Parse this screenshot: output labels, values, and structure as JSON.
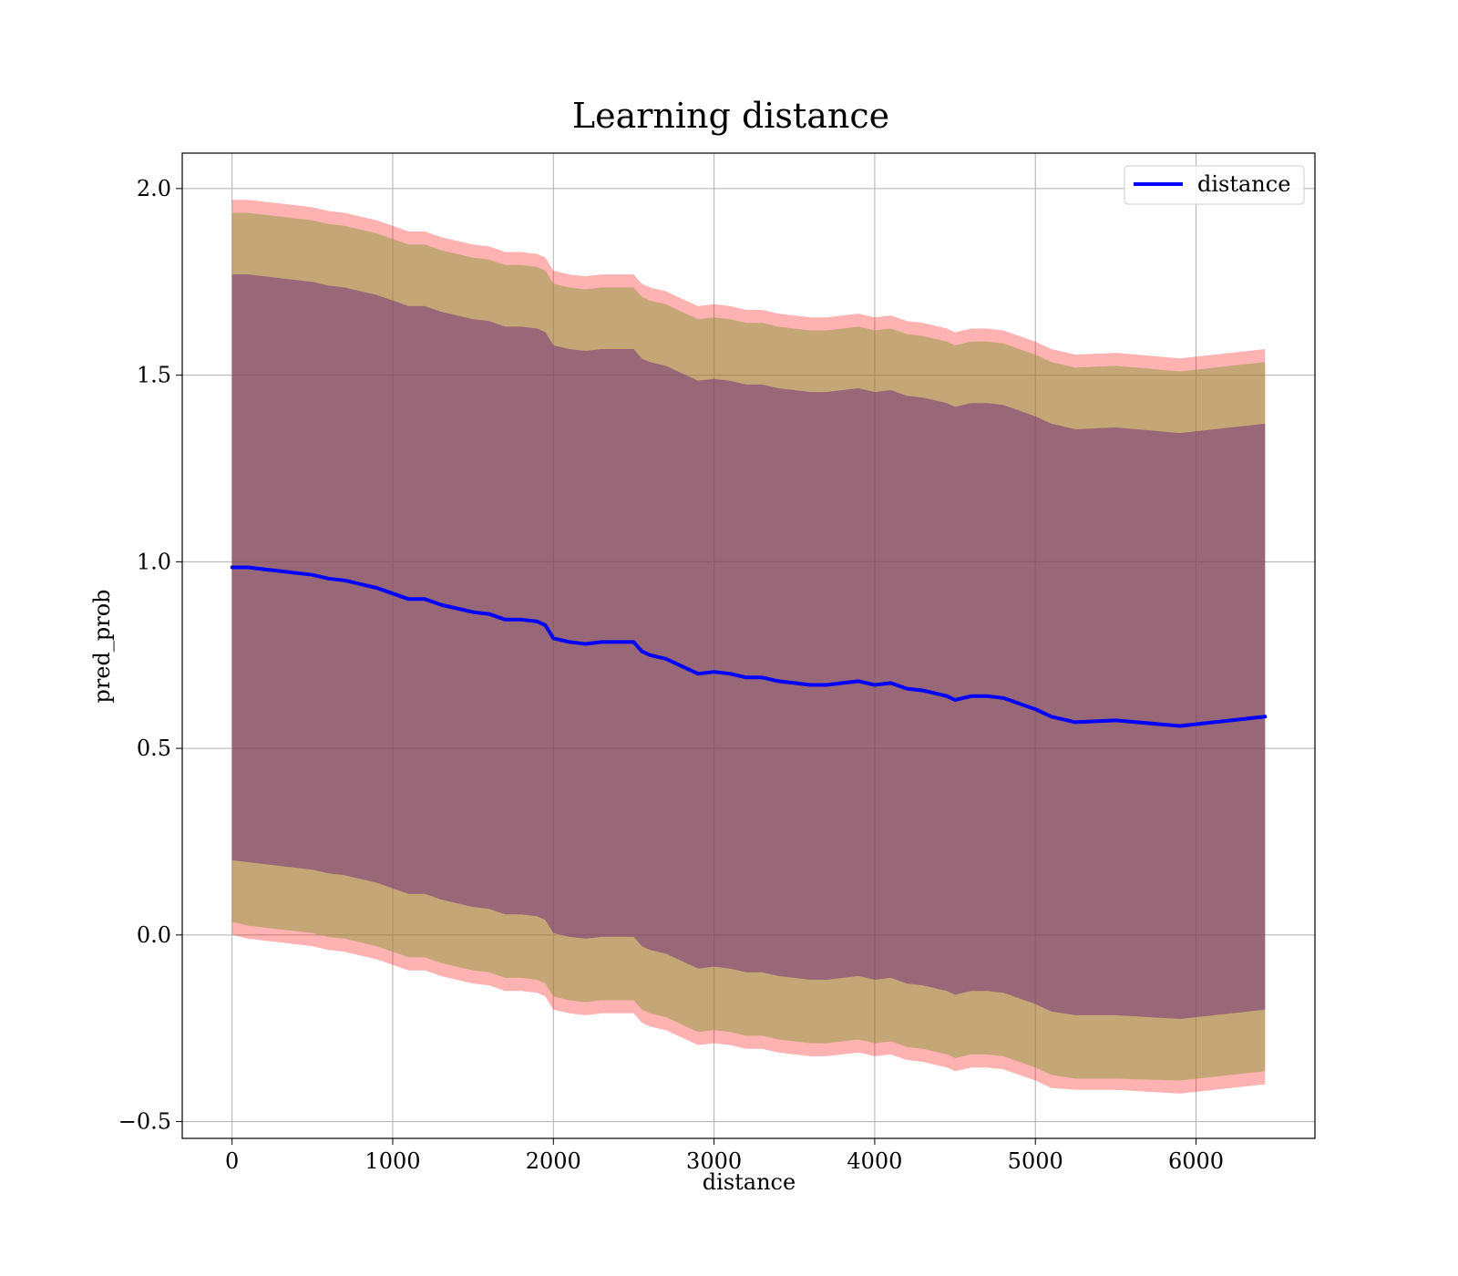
{
  "chart_data": {
    "type": "line",
    "title": "Learning distance",
    "xlabel": "distance",
    "ylabel": "pred_prob",
    "xlim": [
      -310,
      6740
    ],
    "ylim": [
      -0.545,
      2.095
    ],
    "xticks": [
      0,
      1000,
      2000,
      3000,
      4000,
      5000,
      6000
    ],
    "xtick_labels": [
      "0",
      "1000",
      "2000",
      "3000",
      "4000",
      "5000",
      "6000"
    ],
    "yticks": [
      -0.5,
      0.0,
      0.5,
      1.0,
      1.5,
      2.0
    ],
    "ytick_labels": [
      "−0.5",
      "0.0",
      "0.5",
      "1.0",
      "1.5",
      "2.0"
    ],
    "grid": true,
    "legend": {
      "position": "top-right",
      "entries": [
        "distance"
      ]
    },
    "colors": {
      "line": "#0000ff",
      "outer_band": "#ff0000",
      "middle_band": "#8b9a3a",
      "inner_band": "#6b2a7a"
    },
    "series": [
      {
        "name": "distance",
        "x": [
          0,
          100,
          200,
          300,
          400,
          500,
          600,
          700,
          800,
          900,
          1000,
          1100,
          1200,
          1300,
          1400,
          1500,
          1600,
          1700,
          1800,
          1900,
          1950,
          2000,
          2100,
          2200,
          2300,
          2400,
          2500,
          2550,
          2600,
          2700,
          2800,
          2900,
          3000,
          3100,
          3200,
          3300,
          3400,
          3500,
          3600,
          3700,
          3800,
          3900,
          4000,
          4100,
          4200,
          4300,
          4400,
          4450,
          4500,
          4600,
          4700,
          4800,
          4900,
          5000,
          5100,
          5250,
          5500,
          5900,
          6430
        ],
        "values": [
          0.985,
          0.985,
          0.98,
          0.975,
          0.97,
          0.965,
          0.955,
          0.95,
          0.94,
          0.93,
          0.915,
          0.9,
          0.9,
          0.885,
          0.875,
          0.865,
          0.86,
          0.845,
          0.845,
          0.84,
          0.83,
          0.795,
          0.785,
          0.78,
          0.785,
          0.785,
          0.785,
          0.76,
          0.75,
          0.74,
          0.72,
          0.7,
          0.705,
          0.7,
          0.69,
          0.69,
          0.68,
          0.675,
          0.67,
          0.67,
          0.675,
          0.68,
          0.67,
          0.675,
          0.66,
          0.655,
          0.645,
          0.64,
          0.63,
          0.64,
          0.64,
          0.635,
          0.62,
          0.605,
          0.585,
          0.57,
          0.575,
          0.56,
          0.585
        ]
      }
    ],
    "bands": [
      {
        "name": "outer",
        "lower": [
          0.0,
          -0.01,
          -0.015,
          -0.02,
          -0.025,
          -0.03,
          -0.04,
          -0.045,
          -0.055,
          -0.065,
          -0.08,
          -0.095,
          -0.095,
          -0.11,
          -0.12,
          -0.13,
          -0.135,
          -0.15,
          -0.15,
          -0.155,
          -0.165,
          -0.2,
          -0.21,
          -0.215,
          -0.21,
          -0.21,
          -0.21,
          -0.235,
          -0.245,
          -0.255,
          -0.275,
          -0.295,
          -0.29,
          -0.295,
          -0.305,
          -0.305,
          -0.315,
          -0.32,
          -0.325,
          -0.325,
          -0.32,
          -0.315,
          -0.325,
          -0.32,
          -0.335,
          -0.34,
          -0.35,
          -0.355,
          -0.365,
          -0.355,
          -0.355,
          -0.36,
          -0.375,
          -0.39,
          -0.41,
          -0.415,
          -0.415,
          -0.425,
          -0.4
        ],
        "upper": [
          1.97,
          1.97,
          1.965,
          1.96,
          1.955,
          1.95,
          1.94,
          1.935,
          1.925,
          1.915,
          1.9,
          1.885,
          1.885,
          1.87,
          1.86,
          1.85,
          1.845,
          1.83,
          1.83,
          1.825,
          1.815,
          1.78,
          1.77,
          1.765,
          1.77,
          1.77,
          1.77,
          1.745,
          1.735,
          1.725,
          1.705,
          1.685,
          1.69,
          1.685,
          1.675,
          1.675,
          1.665,
          1.66,
          1.655,
          1.655,
          1.66,
          1.665,
          1.655,
          1.66,
          1.645,
          1.64,
          1.63,
          1.625,
          1.615,
          1.625,
          1.625,
          1.62,
          1.605,
          1.59,
          1.57,
          1.555,
          1.56,
          1.545,
          1.57
        ]
      },
      {
        "name": "middle",
        "lower": [
          0.035,
          0.025,
          0.02,
          0.015,
          0.01,
          0.005,
          -0.005,
          -0.01,
          -0.02,
          -0.03,
          -0.045,
          -0.06,
          -0.06,
          -0.075,
          -0.085,
          -0.095,
          -0.1,
          -0.115,
          -0.115,
          -0.12,
          -0.13,
          -0.165,
          -0.175,
          -0.18,
          -0.175,
          -0.175,
          -0.175,
          -0.2,
          -0.21,
          -0.22,
          -0.24,
          -0.26,
          -0.255,
          -0.26,
          -0.27,
          -0.27,
          -0.28,
          -0.285,
          -0.29,
          -0.29,
          -0.285,
          -0.28,
          -0.29,
          -0.285,
          -0.3,
          -0.305,
          -0.315,
          -0.32,
          -0.33,
          -0.32,
          -0.32,
          -0.325,
          -0.34,
          -0.355,
          -0.375,
          -0.385,
          -0.385,
          -0.39,
          -0.365
        ],
        "upper": [
          1.935,
          1.935,
          1.93,
          1.925,
          1.92,
          1.915,
          1.905,
          1.9,
          1.89,
          1.88,
          1.865,
          1.85,
          1.85,
          1.835,
          1.825,
          1.815,
          1.81,
          1.795,
          1.795,
          1.79,
          1.78,
          1.745,
          1.735,
          1.73,
          1.735,
          1.735,
          1.735,
          1.71,
          1.7,
          1.69,
          1.67,
          1.65,
          1.655,
          1.65,
          1.64,
          1.64,
          1.63,
          1.625,
          1.62,
          1.62,
          1.625,
          1.63,
          1.62,
          1.625,
          1.61,
          1.605,
          1.595,
          1.59,
          1.58,
          1.59,
          1.59,
          1.585,
          1.57,
          1.555,
          1.535,
          1.52,
          1.525,
          1.51,
          1.535
        ]
      },
      {
        "name": "inner",
        "lower": [
          0.2,
          0.195,
          0.19,
          0.185,
          0.18,
          0.175,
          0.165,
          0.16,
          0.15,
          0.14,
          0.125,
          0.11,
          0.11,
          0.095,
          0.085,
          0.075,
          0.07,
          0.055,
          0.055,
          0.05,
          0.04,
          0.005,
          -0.005,
          -0.01,
          -0.005,
          -0.005,
          -0.005,
          -0.03,
          -0.04,
          -0.05,
          -0.07,
          -0.09,
          -0.085,
          -0.09,
          -0.1,
          -0.1,
          -0.11,
          -0.115,
          -0.12,
          -0.12,
          -0.115,
          -0.11,
          -0.12,
          -0.115,
          -0.13,
          -0.135,
          -0.145,
          -0.15,
          -0.16,
          -0.15,
          -0.15,
          -0.155,
          -0.17,
          -0.185,
          -0.205,
          -0.215,
          -0.215,
          -0.225,
          -0.2
        ],
        "upper": [
          1.77,
          1.77,
          1.765,
          1.76,
          1.755,
          1.75,
          1.74,
          1.735,
          1.725,
          1.715,
          1.7,
          1.685,
          1.685,
          1.67,
          1.66,
          1.65,
          1.645,
          1.63,
          1.63,
          1.625,
          1.615,
          1.58,
          1.57,
          1.565,
          1.57,
          1.57,
          1.57,
          1.545,
          1.535,
          1.525,
          1.505,
          1.485,
          1.49,
          1.485,
          1.475,
          1.475,
          1.465,
          1.46,
          1.455,
          1.455,
          1.46,
          1.465,
          1.455,
          1.46,
          1.445,
          1.44,
          1.43,
          1.425,
          1.415,
          1.425,
          1.425,
          1.42,
          1.405,
          1.39,
          1.37,
          1.355,
          1.36,
          1.345,
          1.37
        ]
      }
    ]
  }
}
